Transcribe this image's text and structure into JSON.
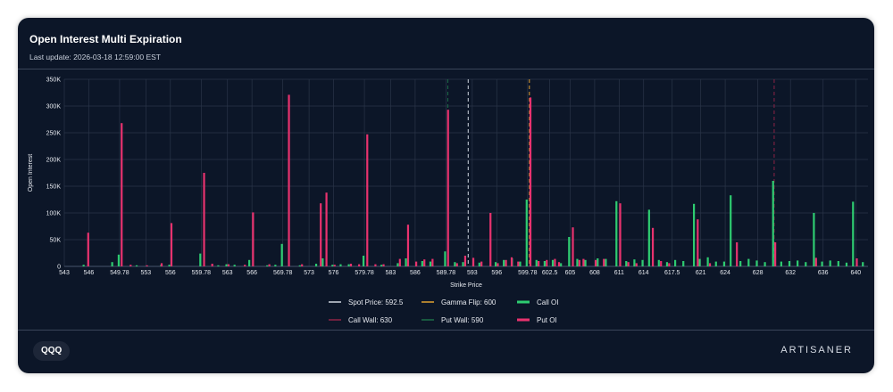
{
  "header": {
    "title": "Open Interest Multi Expiration",
    "last_update": "Last update: 2026-03-18 12:59:00 EST"
  },
  "footer": {
    "ticker": "QQQ",
    "brand": "ARTISANER"
  },
  "colors": {
    "call": "#2ecc71",
    "put": "#e8326e",
    "spot": "#cfd5df",
    "gamma": "#e0a030",
    "call_wall": "#8e2346",
    "put_wall": "#1d6e48",
    "grid": "#2a3548"
  },
  "chart_data": {
    "type": "bar",
    "xlabel": "Strike Price",
    "ylabel": "Open Interest",
    "ylim": [
      0,
      350000
    ],
    "yticks": [
      0,
      50000,
      100000,
      150000,
      200000,
      250000,
      300000,
      350000
    ],
    "ytick_labels": [
      "0",
      "50K",
      "100K",
      "150K",
      "200K",
      "250K",
      "300K",
      "350K"
    ],
    "xlim": [
      543,
      641.5
    ],
    "xticks": [
      543,
      546,
      549.78,
      553,
      556,
      559.78,
      563,
      566,
      569.78,
      573,
      576,
      579.78,
      583,
      586,
      589.78,
      593,
      596,
      599.78,
      602.5,
      605,
      608,
      611,
      614,
      617.5,
      621,
      624,
      628,
      632,
      636,
      640
    ],
    "xtick_labels": [
      "543",
      "546",
      "549.78",
      "553",
      "556",
      "559.78",
      "563",
      "566",
      "569.78",
      "573",
      "576",
      "579.78",
      "583",
      "586",
      "589.78",
      "593",
      "596",
      "599.78",
      "602.5",
      "605",
      "608",
      "611",
      "614",
      "617.5",
      "621",
      "624",
      "628",
      "632",
      "636",
      "640"
    ],
    "series": [
      {
        "name": "Call OI",
        "points": [
          [
            545.5,
            3000
          ],
          [
            549,
            8000
          ],
          [
            549.8,
            22000
          ],
          [
            552,
            2000
          ],
          [
            555,
            3000
          ],
          [
            556,
            3000
          ],
          [
            559.8,
            24000
          ],
          [
            562,
            2000
          ],
          [
            563,
            4000
          ],
          [
            564,
            3000
          ],
          [
            565.8,
            12000
          ],
          [
            568,
            2000
          ],
          [
            569,
            3000
          ],
          [
            569.8,
            42000
          ],
          [
            572,
            2000
          ],
          [
            574,
            5000
          ],
          [
            574.8,
            15000
          ],
          [
            576,
            3000
          ],
          [
            577,
            4000
          ],
          [
            578,
            4000
          ],
          [
            579.8,
            20000
          ],
          [
            582,
            3000
          ],
          [
            584,
            6000
          ],
          [
            585,
            15000
          ],
          [
            587,
            10000
          ],
          [
            588,
            9000
          ],
          [
            589.8,
            28000
          ],
          [
            591,
            8000
          ],
          [
            592,
            8000
          ],
          [
            594,
            7000
          ],
          [
            596,
            8000
          ],
          [
            597,
            12000
          ],
          [
            598,
            15000
          ],
          [
            599,
            9000
          ],
          [
            599.8,
            125000
          ],
          [
            601,
            12000
          ],
          [
            602,
            10000
          ],
          [
            603,
            12000
          ],
          [
            604,
            6000
          ],
          [
            605,
            55000
          ],
          [
            606,
            14000
          ],
          [
            607,
            12000
          ],
          [
            608.5,
            15000
          ],
          [
            609.5,
            14000
          ],
          [
            610.8,
            122000
          ],
          [
            612,
            10000
          ],
          [
            613,
            13000
          ],
          [
            614,
            12000
          ],
          [
            614.8,
            106000
          ],
          [
            616,
            12000
          ],
          [
            617,
            8000
          ],
          [
            618,
            12000
          ],
          [
            619,
            10000
          ],
          [
            620.3,
            117000
          ],
          [
            621,
            14000
          ],
          [
            622,
            17000
          ],
          [
            623,
            9000
          ],
          [
            624,
            9000
          ],
          [
            624.8,
            133000
          ],
          [
            626,
            10000
          ],
          [
            627,
            14000
          ],
          [
            628,
            11000
          ],
          [
            629,
            8000
          ],
          [
            630,
            160000
          ],
          [
            631,
            9000
          ],
          [
            632,
            10000
          ],
          [
            633,
            11000
          ],
          [
            634,
            8000
          ],
          [
            635,
            100000
          ],
          [
            636,
            9000
          ],
          [
            637,
            11000
          ],
          [
            638,
            10000
          ],
          [
            639,
            7000
          ],
          [
            639.8,
            121000
          ],
          [
            641,
            8000
          ]
        ]
      },
      {
        "name": "Put OI",
        "points": [
          [
            545.8,
            63000
          ],
          [
            549.9,
            268000
          ],
          [
            551,
            3000
          ],
          [
            553,
            2000
          ],
          [
            554.8,
            6000
          ],
          [
            556,
            81000
          ],
          [
            560,
            175000
          ],
          [
            561,
            5000
          ],
          [
            563,
            4000
          ],
          [
            565,
            3000
          ],
          [
            566,
            101000
          ],
          [
            568,
            4000
          ],
          [
            570.4,
            321000
          ],
          [
            572,
            4000
          ],
          [
            574.3,
            118000
          ],
          [
            575,
            138000
          ],
          [
            576,
            3000
          ],
          [
            578,
            5000
          ],
          [
            579,
            4000
          ],
          [
            580,
            247000
          ],
          [
            581,
            4000
          ],
          [
            582,
            4000
          ],
          [
            584,
            14000
          ],
          [
            585,
            78000
          ],
          [
            586,
            9000
          ],
          [
            587,
            13000
          ],
          [
            588,
            14000
          ],
          [
            589.9,
            293000
          ],
          [
            591,
            6000
          ],
          [
            592,
            20000
          ],
          [
            593,
            16000
          ],
          [
            594,
            9000
          ],
          [
            595.1,
            100000
          ],
          [
            596,
            6000
          ],
          [
            597,
            12000
          ],
          [
            597.7,
            17000
          ],
          [
            598.5,
            9000
          ],
          [
            600,
            316000
          ],
          [
            601,
            10000
          ],
          [
            602,
            12000
          ],
          [
            603,
            14000
          ],
          [
            603.5,
            8000
          ],
          [
            605.2,
            73000
          ],
          [
            606,
            12000
          ],
          [
            606.5,
            14000
          ],
          [
            608,
            12000
          ],
          [
            609,
            14000
          ],
          [
            611,
            118000
          ],
          [
            612,
            8000
          ],
          [
            613,
            6000
          ],
          [
            615,
            72000
          ],
          [
            616,
            10000
          ],
          [
            617,
            6000
          ],
          [
            620.5,
            88000
          ],
          [
            622,
            6000
          ],
          [
            625.3,
            45000
          ],
          [
            630,
            45000
          ],
          [
            635,
            16000
          ],
          [
            640,
            15000
          ]
        ]
      }
    ],
    "reference_lines": [
      {
        "name": "Spot Price",
        "value": 592.5,
        "label": "Spot Price: 592.5",
        "color_key": "spot",
        "dash": "4,3"
      },
      {
        "name": "Gamma Flip",
        "value": 600,
        "label": "Gamma Flip: 600",
        "color_key": "gamma",
        "dash": "4,3"
      },
      {
        "name": "Call Wall",
        "value": 630,
        "label": "Call Wall: 630",
        "color_key": "call_wall",
        "dash": "4,3"
      },
      {
        "name": "Put Wall",
        "value": 590,
        "label": "Put Wall: 590",
        "color_key": "put_wall",
        "dash": "4,3"
      }
    ],
    "legend": [
      {
        "label": "Spot Price: 592.5",
        "color_key": "spot"
      },
      {
        "label": "Gamma Flip: 600",
        "color_key": "gamma"
      },
      {
        "label": "Call OI",
        "color_key": "call"
      },
      {
        "label": "Call Wall: 630",
        "color_key": "call_wall"
      },
      {
        "label": "Put Wall: 590",
        "color_key": "put_wall"
      },
      {
        "label": "Put OI",
        "color_key": "put"
      }
    ],
    "legend_position": "bottom-center",
    "grid": true
  }
}
